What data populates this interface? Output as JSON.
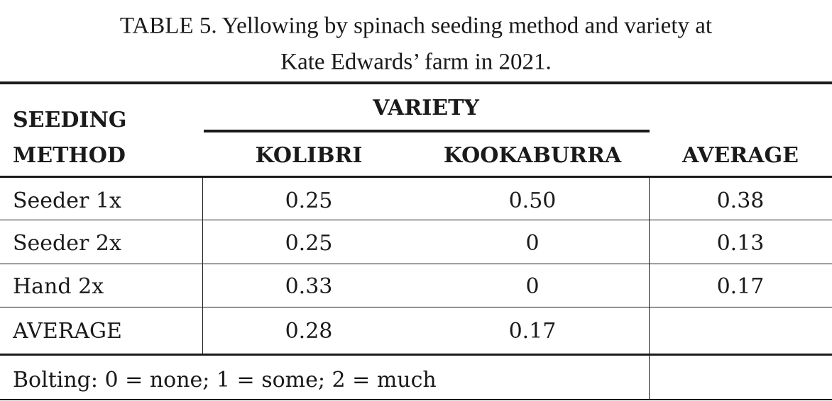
{
  "header": {
    "title_lines": [
      "TABLE 5. Yellowing by spinach seeding method and variety at",
      "Kate Edwards’ farm in 2021."
    ]
  },
  "table": {
    "row_header": [
      "SEEDING",
      "METHOD"
    ],
    "group_header": "VARIETY",
    "columns": [
      "KOLIBRI",
      "KOOKABURRA",
      "AVERAGE"
    ],
    "rows": [
      [
        "Seeder 1x",
        "0.25",
        "0.50",
        "0.38"
      ],
      [
        "Seeder 2x",
        "0.25",
        "0",
        "0.13"
      ],
      [
        "Hand 2x",
        "0.33",
        "0",
        "0.17"
      ],
      [
        "AVERAGE",
        "0.28",
        "0.17"
      ]
    ],
    "note": "Bolting: 0 = none; 1 = some; 2 = much"
  }
}
